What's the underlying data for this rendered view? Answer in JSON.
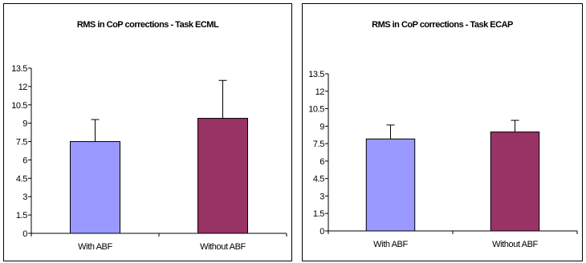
{
  "chart_data": [
    {
      "type": "bar",
      "title": "RMS in CoP corrections - Task ECML",
      "categories": [
        "With ABF",
        "Without ABF"
      ],
      "values": [
        7.5,
        9.4
      ],
      "errors": [
        1.8,
        3.1
      ],
      "colors": [
        "#9999ff",
        "#993366"
      ],
      "yticks": [
        "0",
        "1.5",
        "3",
        "4.5",
        "6",
        "7.5",
        "9",
        "10.5",
        "12",
        "13.5"
      ],
      "ylim": [
        0,
        13.5
      ],
      "grid": false,
      "legend": "none"
    },
    {
      "type": "bar",
      "title": "RMS in CoP corrections - Task ECAP",
      "categories": [
        "With ABF",
        "Without ABF"
      ],
      "values": [
        7.9,
        8.5
      ],
      "errors": [
        1.2,
        1.0
      ],
      "colors": [
        "#9999ff",
        "#993366"
      ],
      "yticks": [
        "0",
        "1.5",
        "3",
        "4.5",
        "6",
        "7.5",
        "9",
        "10.5",
        "12",
        "13.5"
      ],
      "ylim": [
        0,
        13.5
      ],
      "grid": false,
      "legend": "none"
    }
  ]
}
